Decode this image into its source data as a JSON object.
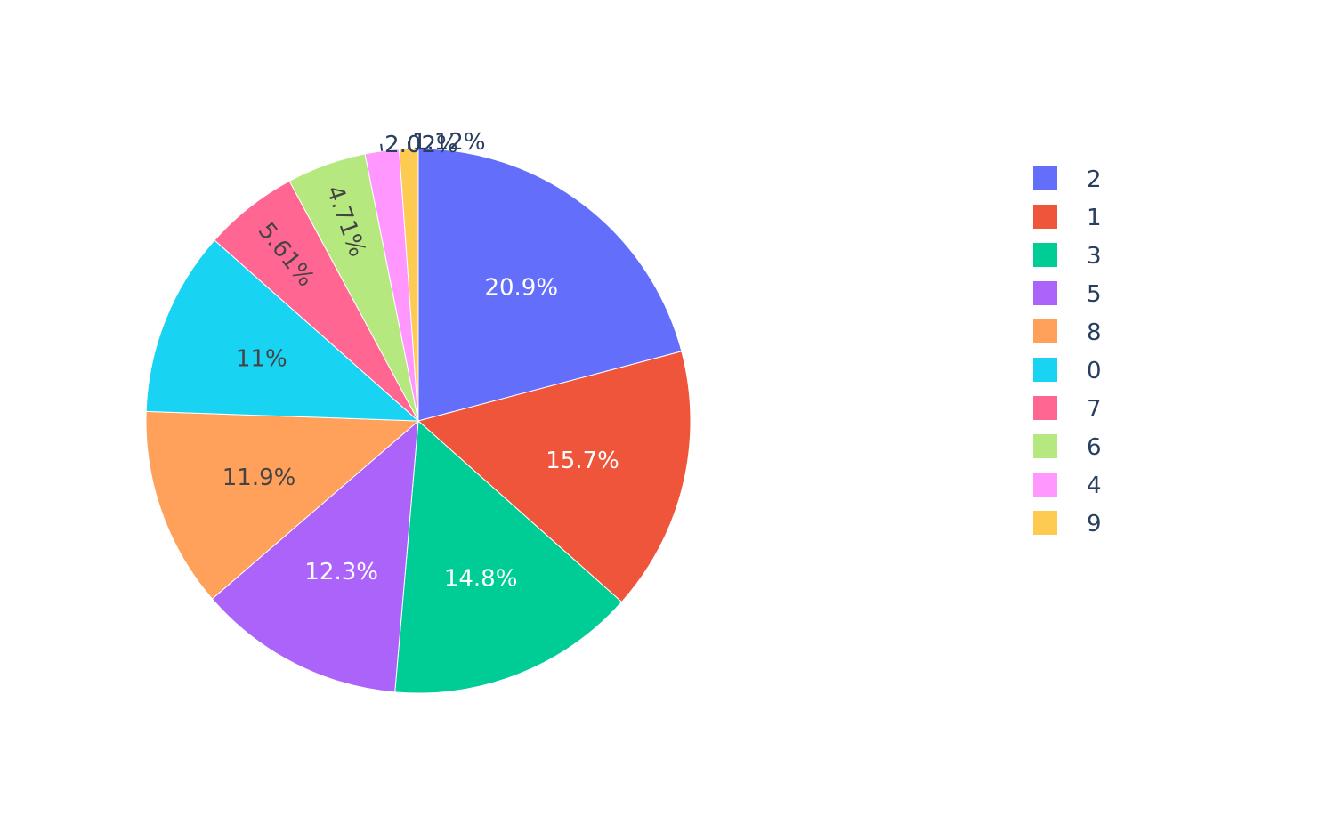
{
  "chart_data": {
    "type": "pie",
    "title": "",
    "legend_position": "right",
    "sort_order": "descending",
    "direction": "clockwise",
    "start": "top",
    "labels": [
      "2",
      "1",
      "3",
      "5",
      "8",
      "0",
      "7",
      "6",
      "4",
      "9"
    ],
    "percentages": [
      20.9,
      15.7,
      14.8,
      12.3,
      11.9,
      11.0,
      5.61,
      4.71,
      2.02,
      1.12
    ],
    "text_labels": [
      "20.9%",
      "15.7%",
      "14.8%",
      "12.3%",
      "11.9%",
      "11%",
      "5.61%",
      "4.71%",
      "2.02%",
      "1.12%"
    ],
    "colors": [
      "#636efa",
      "#ef553b",
      "#00cc96",
      "#ab63fa",
      "#ffa15a",
      "#19d3f3",
      "#ff6692",
      "#b6e880",
      "#ff97ff",
      "#fecb52"
    ],
    "legend_order": [
      "2",
      "1",
      "3",
      "5",
      "8",
      "0",
      "7",
      "6",
      "4",
      "9"
    ]
  }
}
